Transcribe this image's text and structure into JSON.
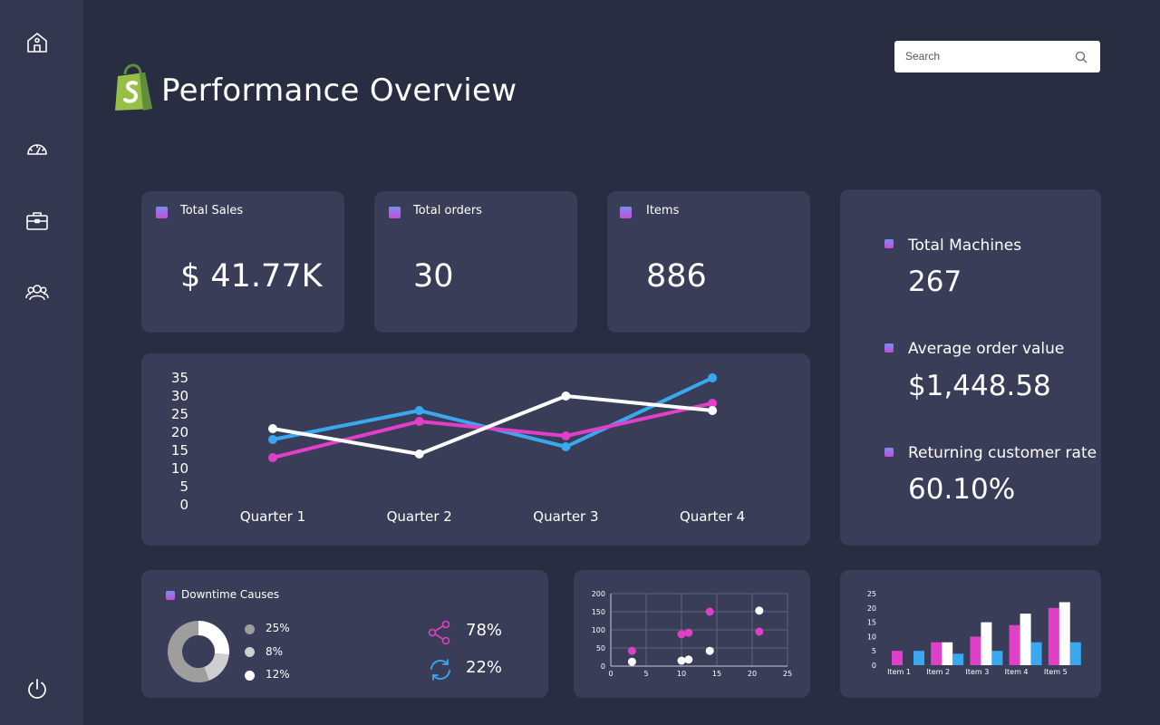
{
  "app": {
    "title": "Performance Overview"
  },
  "search": {
    "placeholder": "Search"
  },
  "sidebar": {
    "items": [
      {
        "icon": "home-icon"
      },
      {
        "icon": "speedometer-icon"
      },
      {
        "icon": "briefcase-icon"
      },
      {
        "icon": "users-icon"
      }
    ],
    "footer_icon": "power-icon"
  },
  "kpis": [
    {
      "label": "Total Sales",
      "value": "$ 41.77K"
    },
    {
      "label": "Total orders",
      "value": "30"
    },
    {
      "label": "Items",
      "value": "886"
    }
  ],
  "right_panel": [
    {
      "label": "Total Machines",
      "value": "267"
    },
    {
      "label": "Average order value",
      "value": "$1,448.58"
    },
    {
      "label": "Returning customer rate",
      "value": "60.10%"
    }
  ],
  "downtime": {
    "title": "Downtime Causes",
    "legend": [
      {
        "value": "25%",
        "color": "#9e9e9e"
      },
      {
        "value": "8%",
        "color": "#cfcfcf"
      },
      {
        "value": "12%",
        "color": "#ffffff"
      }
    ],
    "stats": [
      {
        "icon": "share-icon",
        "value": "78%",
        "color": "#e040c8"
      },
      {
        "icon": "refresh-icon",
        "value": "22%",
        "color": "#3aa8f0"
      }
    ]
  },
  "colors": {
    "blue": "#3aa8f0",
    "pink": "#e040c8",
    "white": "#ffffff",
    "card": "#393d57",
    "background": "#282d42"
  },
  "chart_data": [
    {
      "type": "line",
      "categories": [
        "Quarter 1",
        "Quarter 2",
        "Quarter 3",
        "Quarter 4"
      ],
      "series": [
        {
          "color": "#3aa8f0",
          "values": [
            18,
            26,
            16,
            35
          ]
        },
        {
          "color": "#e040c8",
          "values": [
            13,
            23,
            19,
            28
          ]
        },
        {
          "color": "#ffffff",
          "values": [
            21,
            14,
            30,
            26
          ]
        }
      ],
      "yticks": [
        "0",
        "5",
        "10",
        "15",
        "20",
        "25",
        "30",
        "35"
      ],
      "ylim": [
        0,
        35
      ],
      "grid": false,
      "legend": "none"
    },
    {
      "type": "scatter",
      "xlim": [
        0,
        25
      ],
      "ylim": [
        0,
        200
      ],
      "xticks": [
        "0",
        "5",
        "10",
        "15",
        "20",
        "25"
      ],
      "yticks": [
        "0",
        "50",
        "100",
        "150",
        "200"
      ],
      "grid": true,
      "series": [
        {
          "color": "#e040c8",
          "points": [
            [
              3,
              42
            ],
            [
              10,
              88
            ],
            [
              11,
              92
            ],
            [
              14,
              150
            ],
            [
              21,
              95
            ]
          ]
        },
        {
          "color": "#ffffff",
          "points": [
            [
              3,
              12
            ],
            [
              10,
              15
            ],
            [
              11,
              18
            ],
            [
              14,
              42
            ],
            [
              21,
              153
            ]
          ]
        }
      ]
    },
    {
      "type": "bar",
      "categories": [
        "Item 1",
        "Item 2",
        "Item 3",
        "Item 4",
        "Item 5"
      ],
      "series": [
        {
          "color": "#e040c8",
          "values": [
            5,
            8,
            10,
            14,
            20
          ]
        },
        {
          "color": "#ffffff",
          "values": [
            0,
            8,
            15,
            18,
            22
          ]
        },
        {
          "color": "#3aa8f0",
          "values": [
            5,
            4,
            5,
            8,
            8
          ]
        }
      ],
      "yticks": [
        "0",
        "5",
        "10",
        "15",
        "20",
        "25"
      ],
      "ylim": [
        0,
        25
      ],
      "grid": false
    },
    {
      "type": "pie",
      "labels": [
        "25%",
        "8%",
        "12%"
      ],
      "values": [
        25,
        8,
        12
      ],
      "colors": [
        "#9e9e9e",
        "#cfcfcf",
        "#ffffff"
      ],
      "donut": true
    }
  ]
}
